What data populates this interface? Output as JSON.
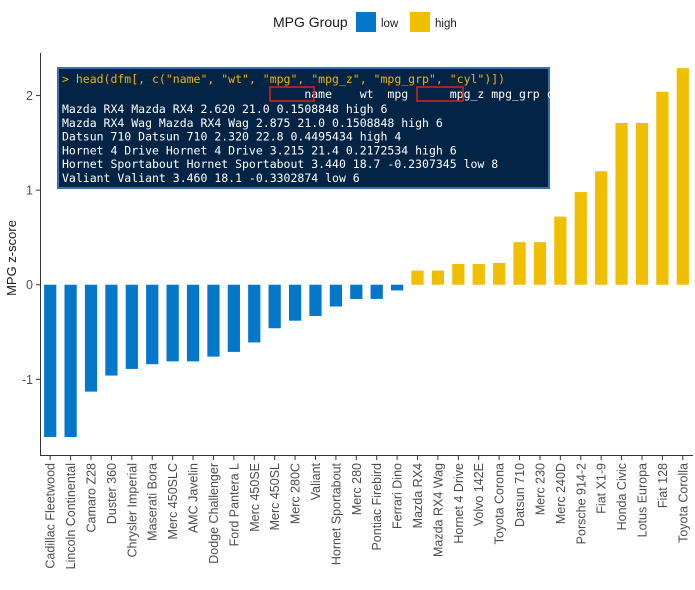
{
  "chart_data": {
    "type": "bar",
    "ylabel": "MPG z-score",
    "xlabel": "",
    "ylim": [
      -1.8,
      2.45
    ],
    "yticks": [
      -1,
      0,
      1,
      2
    ],
    "grid": false,
    "legend": {
      "title": "MPG Group",
      "position": "top",
      "entries": [
        {
          "label": "low",
          "color": "#0577c9"
        },
        {
          "label": "high",
          "color": "#f0c000"
        }
      ]
    },
    "categories": [
      "Cadillac Fleetwood",
      "Lincoln Continental",
      "Camaro Z28",
      "Duster 360",
      "Chrysler Imperial",
      "Maserati Bora",
      "Merc 450SLC",
      "AMC Javelin",
      "Dodge Challenger",
      "Ford Pantera L",
      "Merc 450SE",
      "Merc 450SL",
      "Merc 280C",
      "Valiant",
      "Hornet Sportabout",
      "Merc 280",
      "Pontiac Firebird",
      "Ferrari Dino",
      "Mazda RX4",
      "Mazda RX4 Wag",
      "Hornet 4 Drive",
      "Volvo 142E",
      "Toyota Corona",
      "Datsun 710",
      "Merc 230",
      "Merc 240D",
      "Porsche 914-2",
      "Fiat X1-9",
      "Honda Civic",
      "Lotus Europa",
      "Fiat 128",
      "Toyota Corolla"
    ],
    "values": [
      -1.61,
      -1.61,
      -1.13,
      -0.96,
      -0.89,
      -0.84,
      -0.81,
      -0.81,
      -0.76,
      -0.71,
      -0.61,
      -0.46,
      -0.38,
      -0.33,
      -0.23,
      -0.15,
      -0.15,
      -0.06,
      0.15,
      0.15,
      0.22,
      0.22,
      0.23,
      0.45,
      0.45,
      0.72,
      0.98,
      1.2,
      1.71,
      1.71,
      2.04,
      2.29
    ],
    "groups": [
      "low",
      "low",
      "low",
      "low",
      "low",
      "low",
      "low",
      "low",
      "low",
      "low",
      "low",
      "low",
      "low",
      "low",
      "low",
      "low",
      "low",
      "low",
      "high",
      "high",
      "high",
      "high",
      "high",
      "high",
      "high",
      "high",
      "high",
      "high",
      "high",
      "high",
      "high",
      "high"
    ]
  },
  "console": {
    "command": "> head(dfm[, c(\"name\", \"wt\", \"mpg\", \"mpg_z\", \"mpg_grp\", \"cyl\")])",
    "header": "                                   name    wt  mpg      mpg_z mpg_grp cyl",
    "rows": [
      "Mazda RX4                     Mazda RX4 2.620 21.0  0.1508848    high   6",
      "Mazda RX4 Wag             Mazda RX4 Wag 2.875 21.0  0.1508848    high   6",
      "Datsun 710                   Datsun 710 2.320 22.8  0.4495434    high   4",
      "Hornet 4 Drive           Hornet 4 Drive 3.215 21.4  0.2172534    high   6",
      "Hornet Sportabout Hornet Sportabout 3.440 18.7 -0.2307345     low   8",
      "Valiant                         Valiant 3.460 18.1 -0.3302874     low   6"
    ],
    "background": "#032445",
    "text_color": "#ffffff",
    "command_color": "#f0b400",
    "highlight_color": "#e0201b"
  }
}
